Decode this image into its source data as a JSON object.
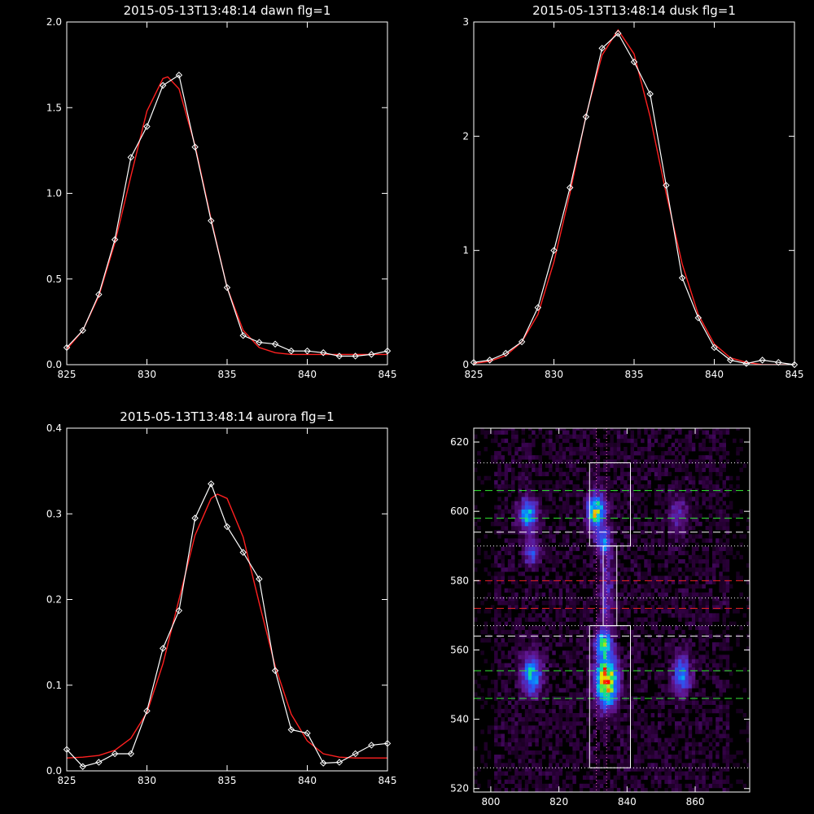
{
  "chart_data": [
    {
      "id": "dawn",
      "type": "line",
      "title": "2015-05-13T13:48:14 dawn flg=1",
      "xlim": [
        825,
        845
      ],
      "ylim": [
        0,
        2.0
      ],
      "xticks": [
        825,
        830,
        835,
        840,
        845
      ],
      "xtick_labels": [
        "825",
        "830",
        "835",
        "840",
        "845"
      ],
      "yticks": [
        0,
        0.5,
        1.0,
        1.5,
        2.0
      ],
      "ytick_labels": [
        "0.0",
        "0.5",
        "1.0",
        "1.5",
        "2.0"
      ],
      "series": [
        {
          "role": "data",
          "color": "#ffffff",
          "marker": "diamond",
          "x": [
            825,
            826,
            827,
            828,
            829,
            830,
            831,
            832,
            833,
            834,
            835,
            836,
            837,
            838,
            839,
            840,
            841,
            842,
            843,
            844,
            845
          ],
          "y": [
            0.1,
            0.2,
            0.41,
            0.73,
            1.21,
            1.39,
            1.63,
            1.69,
            1.27,
            0.84,
            0.45,
            0.17,
            0.13,
            0.12,
            0.08,
            0.08,
            0.07,
            0.05,
            0.05,
            0.06,
            0.08
          ]
        },
        {
          "role": "fit",
          "color": "#ff2020",
          "marker": "none",
          "x": [
            825,
            826,
            827,
            828,
            829,
            830,
            831,
            831.3,
            832,
            833,
            834,
            835,
            836,
            837,
            838,
            839,
            840,
            841,
            842,
            843,
            844,
            845
          ],
          "y": [
            0.09,
            0.2,
            0.4,
            0.71,
            1.1,
            1.48,
            1.67,
            1.68,
            1.61,
            1.28,
            0.85,
            0.45,
            0.2,
            0.1,
            0.07,
            0.06,
            0.06,
            0.06,
            0.06,
            0.06,
            0.06,
            0.06
          ]
        }
      ]
    },
    {
      "id": "dusk",
      "type": "line",
      "title": "2015-05-13T13:48:14 dusk flg=1",
      "xlim": [
        825,
        845
      ],
      "ylim": [
        0,
        3.0
      ],
      "xticks": [
        825,
        830,
        835,
        840,
        845
      ],
      "xtick_labels": [
        "825",
        "830",
        "835",
        "840",
        "845"
      ],
      "yticks": [
        0,
        1,
        2,
        3
      ],
      "ytick_labels": [
        "0",
        "1",
        "2",
        "3"
      ],
      "series": [
        {
          "role": "data",
          "color": "#ffffff",
          "marker": "diamond",
          "x": [
            825,
            826,
            827,
            828,
            829,
            830,
            831,
            832,
            833,
            834,
            835,
            836,
            837,
            838,
            839,
            840,
            841,
            842,
            843,
            844,
            845
          ],
          "y": [
            0.02,
            0.04,
            0.1,
            0.2,
            0.5,
            1.0,
            1.55,
            2.17,
            2.77,
            2.9,
            2.65,
            2.37,
            1.57,
            0.76,
            0.41,
            0.15,
            0.04,
            0.01,
            0.04,
            0.02,
            0.0
          ]
        },
        {
          "role": "fit",
          "color": "#ff2020",
          "marker": "none",
          "x": [
            825,
            826,
            827,
            828,
            829,
            830,
            831,
            832,
            833,
            834,
            835,
            836,
            837,
            838,
            839,
            840,
            841,
            842,
            843,
            844,
            845
          ],
          "y": [
            0.01,
            0.03,
            0.08,
            0.2,
            0.44,
            0.9,
            1.5,
            2.18,
            2.71,
            2.93,
            2.72,
            2.17,
            1.5,
            0.88,
            0.44,
            0.18,
            0.06,
            0.02,
            0.0,
            0.0,
            0.0
          ]
        }
      ]
    },
    {
      "id": "aurora",
      "type": "line",
      "title": "2015-05-13T13:48:14 aurora flg=1",
      "xlim": [
        825,
        845
      ],
      "ylim": [
        0,
        0.4
      ],
      "xticks": [
        825,
        830,
        835,
        840,
        845
      ],
      "xtick_labels": [
        "825",
        "830",
        "835",
        "840",
        "845"
      ],
      "yticks": [
        0,
        0.1,
        0.2,
        0.3,
        0.4
      ],
      "ytick_labels": [
        "0.0",
        "0.1",
        "0.2",
        "0.3",
        "0.4"
      ],
      "series": [
        {
          "role": "data",
          "color": "#ffffff",
          "marker": "diamond",
          "x": [
            825,
            826,
            827,
            828,
            829,
            830,
            831,
            832,
            833,
            834,
            835,
            836,
            837,
            838,
            839,
            840,
            841,
            842,
            843,
            844,
            845
          ],
          "y": [
            0.025,
            0.005,
            0.01,
            0.02,
            0.02,
            0.07,
            0.143,
            0.187,
            0.295,
            0.335,
            0.285,
            0.255,
            0.224,
            0.117,
            0.048,
            0.044,
            0.009,
            0.01,
            0.02,
            0.03,
            0.032
          ]
        },
        {
          "role": "fit",
          "color": "#ff2020",
          "marker": "none",
          "x": [
            825,
            826,
            827,
            828,
            829,
            830,
            831,
            832,
            833,
            834,
            834.4,
            835,
            836,
            837,
            838,
            839,
            840,
            841,
            842,
            843,
            844,
            845
          ],
          "y": [
            0.015,
            0.016,
            0.018,
            0.024,
            0.038,
            0.068,
            0.125,
            0.2,
            0.275,
            0.318,
            0.323,
            0.318,
            0.273,
            0.196,
            0.122,
            0.066,
            0.035,
            0.02,
            0.016,
            0.015,
            0.015,
            0.015
          ]
        }
      ]
    },
    {
      "id": "image",
      "type": "heatmap",
      "xlim": [
        795,
        876
      ],
      "ylim": [
        519,
        624
      ],
      "xticks": [
        800,
        820,
        840,
        860
      ],
      "xtick_labels": [
        "800",
        "820",
        "840",
        "860"
      ],
      "yticks": [
        520,
        540,
        560,
        580,
        600,
        620
      ],
      "ytick_labels": [
        "520",
        "540",
        "560",
        "580",
        "600",
        "620"
      ],
      "colormap": "rainbow",
      "blobs": [
        {
          "x": 811,
          "y": 599,
          "sx": 1.8,
          "sy": 3.2,
          "amp": 0.55
        },
        {
          "x": 812,
          "y": 588,
          "sx": 1.6,
          "sy": 2.5,
          "amp": 0.35
        },
        {
          "x": 831,
          "y": 600,
          "sx": 1.8,
          "sy": 3.5,
          "amp": 0.7
        },
        {
          "x": 833,
          "y": 591,
          "sx": 1.5,
          "sy": 2.5,
          "amp": 0.4
        },
        {
          "x": 855,
          "y": 599,
          "sx": 1.8,
          "sy": 4.0,
          "amp": 0.22
        },
        {
          "x": 812,
          "y": 553,
          "sx": 2.0,
          "sy": 4.0,
          "amp": 0.55
        },
        {
          "x": 834,
          "y": 551,
          "sx": 2.2,
          "sy": 5.0,
          "amp": 0.95
        },
        {
          "x": 833,
          "y": 562,
          "sx": 1.6,
          "sy": 2.5,
          "amp": 0.55
        },
        {
          "x": 856,
          "y": 553,
          "sx": 1.8,
          "sy": 4.0,
          "amp": 0.45
        },
        {
          "x": 834,
          "y": 576,
          "sx": 1.5,
          "sy": 10.0,
          "amp": 0.22
        }
      ],
      "boxes": [
        {
          "x0": 829,
          "x1": 841,
          "y0": 590,
          "y1": 614
        },
        {
          "x0": 829,
          "x1": 841,
          "y0": 526,
          "y1": 567
        },
        {
          "x0": 833,
          "x1": 837,
          "y0": 567,
          "y1": 590
        }
      ],
      "hlines": [
        {
          "y": 614,
          "style": "dotted",
          "color": "#ffffff"
        },
        {
          "y": 606,
          "style": "dashed",
          "color": "#33ee33"
        },
        {
          "y": 598,
          "style": "dashed",
          "color": "#33ee33"
        },
        {
          "y": 594,
          "style": "dashed",
          "color": "#ffffff"
        },
        {
          "y": 590,
          "style": "dotted",
          "color": "#ffffff"
        },
        {
          "y": 580,
          "style": "dashed",
          "color": "#ee2222"
        },
        {
          "y": 575,
          "style": "dotted",
          "color": "#ffffff"
        },
        {
          "y": 572,
          "style": "dashed",
          "color": "#ee2222"
        },
        {
          "y": 567,
          "style": "dotted",
          "color": "#ffffff"
        },
        {
          "y": 564,
          "style": "dashed",
          "color": "#ffffff"
        },
        {
          "y": 554,
          "style": "dashed",
          "color": "#33ee33"
        },
        {
          "y": 546,
          "style": "dashed",
          "color": "#33ee33"
        },
        {
          "y": 526,
          "style": "dotted",
          "color": "#ffffff"
        }
      ],
      "vlines": [
        {
          "x": 831,
          "style": "dotted",
          "color": "#ff66cc"
        },
        {
          "x": 834,
          "style": "dotted",
          "color": "#ff66cc"
        }
      ]
    }
  ]
}
